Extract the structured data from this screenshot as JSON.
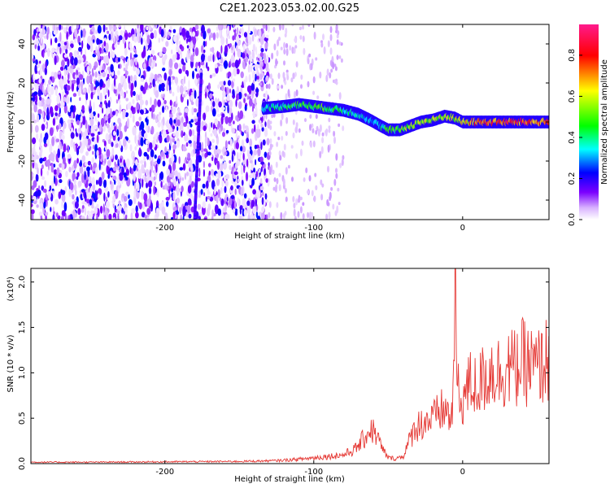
{
  "title": "C2E1.2023.053.02.00.G25",
  "chart_data": [
    {
      "type": "heatmap",
      "xlabel": "Height of straight line (km)",
      "ylabel": "Frequency (Hz)",
      "colorbar_label": "Normalized spectral amplitude",
      "xlim": [
        -290,
        58
      ],
      "ylim": [
        -50,
        50
      ],
      "x_ticks": [
        -200,
        -100,
        0
      ],
      "x_tick_labels": [
        "-200",
        "-100",
        "0"
      ],
      "y_ticks": [
        -40,
        -20,
        0,
        20,
        40
      ],
      "y_tick_labels": [
        "-40",
        "-20",
        "0",
        "20",
        "40"
      ],
      "colorbar_ticks": [
        0.0,
        0.2,
        0.4,
        0.6,
        0.8
      ],
      "colorbar_tick_labels": [
        "0.0",
        "0.2",
        "0.4",
        "0.6",
        "0.8"
      ],
      "colorbar_range": [
        0.0,
        0.95
      ],
      "colormap": [
        "#ffffff",
        "#d9b3ff",
        "#7b00ff",
        "#0000ff",
        "#00ffff",
        "#00ff00",
        "#ffff00",
        "#ff0000",
        "#ff00aa"
      ],
      "ridge": {
        "x": [
          -134,
          -120,
          -110,
          -100,
          -90,
          -80,
          -70,
          -62,
          -55,
          -50,
          -42,
          -35,
          -28,
          -20,
          -12,
          -5,
          0,
          10,
          20,
          30,
          40,
          50,
          58
        ],
        "y": [
          7,
          8,
          9,
          8,
          7,
          6,
          4,
          1,
          -2,
          -4,
          -4,
          -2,
          0,
          1,
          3,
          2,
          0,
          0,
          0,
          0,
          0,
          0,
          0
        ],
        "amplitude": [
          0.4,
          0.45,
          0.5,
          0.55,
          0.5,
          0.45,
          0.4,
          0.35,
          0.4,
          0.5,
          0.55,
          0.6,
          0.62,
          0.65,
          0.6,
          0.65,
          0.7,
          0.85,
          0.88,
          0.88,
          0.88,
          0.88,
          0.85
        ]
      },
      "vertical_streak": {
        "x": -180,
        "y_range": [
          -50,
          25
        ]
      },
      "noise_region": {
        "x_range": [
          -290,
          -130
        ],
        "typical_amplitude": 0.1
      }
    },
    {
      "type": "line",
      "xlabel": "Height of straight line (km)",
      "ylabel": "SNR (10 * v/v)",
      "y_multiplier": "(x10⁴)",
      "xlim": [
        -290,
        58
      ],
      "ylim": [
        0,
        2.15
      ],
      "x_ticks": [
        -200,
        -100,
        0
      ],
      "x_tick_labels": [
        "-200",
        "-100",
        "0"
      ],
      "y_ticks": [
        0.0,
        0.5,
        1.0,
        1.5,
        2.0
      ],
      "y_tick_labels": [
        "0.0",
        "0.5",
        "1.0",
        "1.5",
        "2.0"
      ],
      "series": [
        {
          "color": "#e53935",
          "envelope_x": [
            -290,
            -250,
            -200,
            -150,
            -125,
            -110,
            -100,
            -90,
            -80,
            -72,
            -66,
            -62,
            -58,
            -54,
            -50,
            -45,
            -40,
            -36,
            -32,
            -28,
            -24,
            -20,
            -16,
            -12,
            -8,
            -6,
            -5,
            -4,
            -2,
            0,
            5,
            10,
            15,
            20,
            25,
            30,
            35,
            40,
            45,
            50,
            55,
            58
          ],
          "envelope_y": [
            0.02,
            0.02,
            0.025,
            0.03,
            0.04,
            0.06,
            0.08,
            0.1,
            0.12,
            0.2,
            0.35,
            0.48,
            0.4,
            0.2,
            0.08,
            0.07,
            0.1,
            0.3,
            0.5,
            0.55,
            0.6,
            0.6,
            0.7,
            0.75,
            0.6,
            1.0,
            2.15,
            1.2,
            0.8,
            0.9,
            1.1,
            1.05,
            1.2,
            1.3,
            1.25,
            1.35,
            1.3,
            1.4,
            1.35,
            1.3,
            1.4,
            1.45
          ]
        }
      ]
    }
  ]
}
